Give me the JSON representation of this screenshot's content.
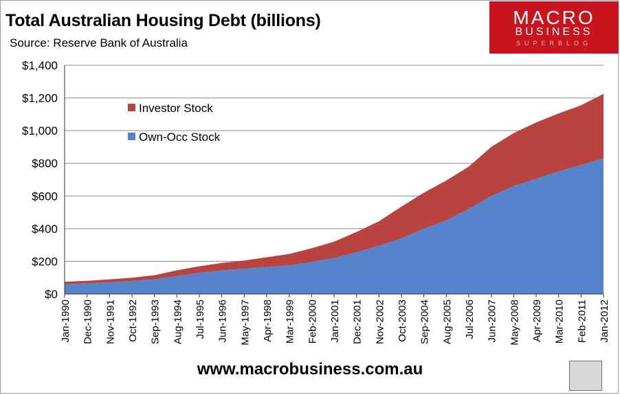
{
  "header": {
    "title": "Total Australian Housing Debt (billions)",
    "source": "Source: Reserve Bank of Australia"
  },
  "logo": {
    "line1": "MACRO",
    "line2": "BUSINESS",
    "line3": "SUPERBLOG"
  },
  "footer": {
    "url": "www.macrobusiness.com.au"
  },
  "colors": {
    "investor": "#b9443f",
    "owner_occ": "#5584cc",
    "grid": "#8a8a8a",
    "logo_bg": "#c8141e"
  },
  "chart_data": {
    "type": "area",
    "stacked": true,
    "title": "Total Australian Housing Debt (billions)",
    "subtitle": "Source: Reserve Bank of Australia",
    "ylim": [
      0,
      1400
    ],
    "grid": true,
    "legend_position": "upper-left",
    "y_ticks": [
      "$0",
      "$200",
      "$400",
      "$600",
      "$800",
      "$1,000",
      "$1,200",
      "$1,400"
    ],
    "x_tick_labels": [
      "Jan-1990",
      "Dec-1990",
      "Nov-1991",
      "Oct-1992",
      "Sep-1993",
      "Aug-1994",
      "Jul-1995",
      "Jun-1996",
      "May-1997",
      "Apr-1998",
      "Mar-1999",
      "Feb-2000",
      "Jan-2001",
      "Dec-2001",
      "Nov-2002",
      "Oct-2003",
      "Sep-2004",
      "Aug-2005",
      "Jul-2006",
      "Jun-2007",
      "May-2008",
      "Apr-2009",
      "Mar-2010",
      "Feb-2011",
      "Jan-2012"
    ],
    "x": [
      "Jan-1990",
      "Dec-1990",
      "Nov-1991",
      "Oct-1992",
      "Sep-1993",
      "Aug-1994",
      "Jul-1995",
      "Jun-1996",
      "May-1997",
      "Apr-1998",
      "Mar-1999",
      "Feb-2000",
      "Jan-2001",
      "Dec-2001",
      "Nov-2002",
      "Oct-2003",
      "Sep-2004",
      "Aug-2005",
      "Jul-2006",
      "Jun-2007",
      "May-2008",
      "Apr-2009",
      "Mar-2010",
      "Feb-2011",
      "Jan-2012"
    ],
    "series": [
      {
        "name": "Own-Occ Stock",
        "values": [
          60,
          65,
          72,
          80,
          90,
          110,
          130,
          145,
          155,
          165,
          175,
          195,
          220,
          255,
          295,
          340,
          400,
          450,
          520,
          600,
          660,
          705,
          750,
          790,
          830
        ]
      },
      {
        "name": "Investor Stock",
        "values": [
          15,
          16,
          18,
          20,
          25,
          35,
          40,
          45,
          50,
          60,
          70,
          85,
          100,
          125,
          150,
          195,
          220,
          245,
          260,
          300,
          325,
          345,
          355,
          365,
          395
        ]
      }
    ]
  }
}
